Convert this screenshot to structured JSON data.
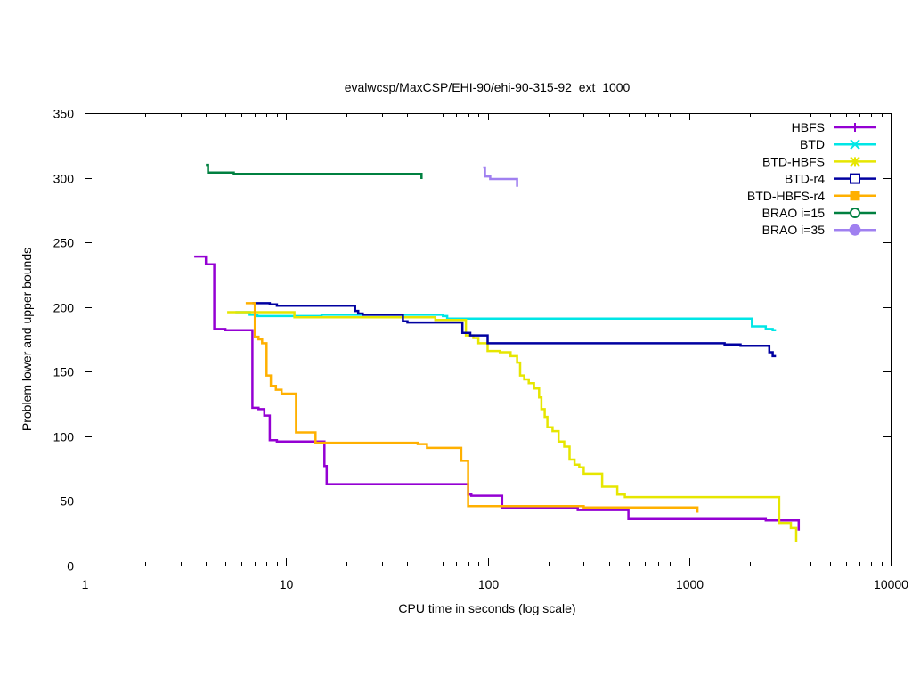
{
  "chart_data": {
    "type": "line",
    "title": "evalwcsp/MaxCSP/EHI-90/ehi-90-315-92_ext_1000",
    "xlabel": "CPU time in seconds (log scale)",
    "ylabel": "Problem lower and upper bounds",
    "xscale": "log",
    "xlim": [
      1,
      10000
    ],
    "ylim": [
      0,
      350
    ],
    "xticks": [
      1,
      10,
      100,
      1000,
      10000
    ],
    "xtick_labels": [
      "1",
      "10",
      "100",
      "1000",
      "10000"
    ],
    "yticks": [
      0,
      50,
      100,
      150,
      200,
      250,
      300,
      350
    ],
    "ytick_labels": [
      "0",
      "50",
      "100",
      "150",
      "200",
      "250",
      "300",
      "350"
    ],
    "grid": false,
    "legend_position": "top-right",
    "series": [
      {
        "name": "HBFS",
        "color": "#9400d3",
        "marker": "plus",
        "points": [
          [
            3.5,
            239
          ],
          [
            4.0,
            239
          ],
          [
            4.0,
            233
          ],
          [
            4.4,
            233
          ],
          [
            4.4,
            183
          ],
          [
            5.0,
            183
          ],
          [
            5.0,
            182
          ],
          [
            6.8,
            182
          ],
          [
            6.8,
            122
          ],
          [
            7.3,
            122
          ],
          [
            7.3,
            121
          ],
          [
            7.8,
            121
          ],
          [
            7.8,
            116
          ],
          [
            8.3,
            116
          ],
          [
            8.3,
            97
          ],
          [
            9.0,
            97
          ],
          [
            9.0,
            96
          ],
          [
            15.5,
            96
          ],
          [
            15.5,
            77
          ],
          [
            15.9,
            77
          ],
          [
            15.9,
            63
          ],
          [
            80,
            63
          ],
          [
            80,
            55
          ],
          [
            83,
            55
          ],
          [
            83,
            54
          ],
          [
            118,
            54
          ],
          [
            118,
            45
          ],
          [
            280,
            45
          ],
          [
            280,
            43
          ],
          [
            500,
            43
          ],
          [
            500,
            36
          ],
          [
            2400,
            36
          ],
          [
            2400,
            35
          ],
          [
            3500,
            35
          ],
          [
            3500,
            27
          ]
        ]
      },
      {
        "name": "BTD",
        "color": "#00e6e6",
        "marker": "x",
        "points": [
          [
            5.6,
            196
          ],
          [
            6.6,
            196
          ],
          [
            6.6,
            194
          ],
          [
            7.2,
            194
          ],
          [
            7.2,
            193
          ],
          [
            15.0,
            193
          ],
          [
            15.0,
            194
          ],
          [
            60,
            194
          ],
          [
            60,
            193
          ],
          [
            63,
            193
          ],
          [
            63,
            191
          ],
          [
            2050,
            191
          ],
          [
            2050,
            185
          ],
          [
            2400,
            185
          ],
          [
            2400,
            183
          ],
          [
            2600,
            183
          ],
          [
            2600,
            182
          ],
          [
            2700,
            182
          ]
        ]
      },
      {
        "name": "BTD-HBFS",
        "color": "#e6e600",
        "marker": "asterisk",
        "points": [
          [
            5.1,
            196
          ],
          [
            11.0,
            196
          ],
          [
            11.0,
            192
          ],
          [
            55,
            192
          ],
          [
            55,
            190
          ],
          [
            78,
            190
          ],
          [
            78,
            178
          ],
          [
            85,
            178
          ],
          [
            85,
            176
          ],
          [
            90,
            176
          ],
          [
            90,
            172
          ],
          [
            100,
            172
          ],
          [
            100,
            166
          ],
          [
            115,
            166
          ],
          [
            115,
            165
          ],
          [
            130,
            165
          ],
          [
            130,
            162
          ],
          [
            140,
            162
          ],
          [
            140,
            157
          ],
          [
            145,
            157
          ],
          [
            145,
            147
          ],
          [
            152,
            147
          ],
          [
            152,
            144
          ],
          [
            160,
            144
          ],
          [
            160,
            141
          ],
          [
            170,
            141
          ],
          [
            170,
            137
          ],
          [
            180,
            137
          ],
          [
            180,
            130
          ],
          [
            185,
            130
          ],
          [
            185,
            121
          ],
          [
            192,
            121
          ],
          [
            192,
            115
          ],
          [
            198,
            115
          ],
          [
            198,
            107
          ],
          [
            210,
            107
          ],
          [
            210,
            104
          ],
          [
            225,
            104
          ],
          [
            225,
            96
          ],
          [
            240,
            96
          ],
          [
            240,
            92
          ],
          [
            255,
            92
          ],
          [
            255,
            82
          ],
          [
            270,
            82
          ],
          [
            270,
            78
          ],
          [
            285,
            78
          ],
          [
            285,
            76
          ],
          [
            300,
            76
          ],
          [
            300,
            71
          ],
          [
            370,
            71
          ],
          [
            370,
            61
          ],
          [
            440,
            61
          ],
          [
            440,
            55
          ],
          [
            480,
            55
          ],
          [
            480,
            53
          ],
          [
            2800,
            53
          ],
          [
            2800,
            33
          ],
          [
            3200,
            33
          ],
          [
            3200,
            29
          ],
          [
            3400,
            29
          ],
          [
            3400,
            18
          ]
        ]
      },
      {
        "name": "BTD-r4",
        "color": "#0000a0",
        "marker": "square",
        "points": [
          [
            6.8,
            203
          ],
          [
            8.3,
            203
          ],
          [
            8.3,
            202
          ],
          [
            9.0,
            202
          ],
          [
            9.0,
            201
          ],
          [
            22.0,
            201
          ],
          [
            22.0,
            197
          ],
          [
            22.8,
            197
          ],
          [
            22.8,
            195
          ],
          [
            24.0,
            195
          ],
          [
            24.0,
            194
          ],
          [
            38,
            194
          ],
          [
            38,
            189
          ],
          [
            40,
            189
          ],
          [
            40,
            188
          ],
          [
            75,
            188
          ],
          [
            75,
            180
          ],
          [
            82,
            180
          ],
          [
            82,
            178
          ],
          [
            100,
            178
          ],
          [
            100,
            172
          ],
          [
            1500,
            172
          ],
          [
            1500,
            171
          ],
          [
            1800,
            171
          ],
          [
            1800,
            170
          ],
          [
            2500,
            170
          ],
          [
            2500,
            165
          ],
          [
            2600,
            165
          ],
          [
            2600,
            162
          ],
          [
            2700,
            162
          ]
        ]
      },
      {
        "name": "BTD-HBFS-r4",
        "color": "#ffb000",
        "marker": "filled-square",
        "points": [
          [
            6.3,
            203
          ],
          [
            7.0,
            203
          ],
          [
            7.0,
            177
          ],
          [
            7.3,
            177
          ],
          [
            7.3,
            175
          ],
          [
            7.6,
            175
          ],
          [
            7.6,
            172
          ],
          [
            8.0,
            172
          ],
          [
            8.0,
            147
          ],
          [
            8.4,
            147
          ],
          [
            8.4,
            139
          ],
          [
            8.9,
            139
          ],
          [
            8.9,
            136
          ],
          [
            9.5,
            136
          ],
          [
            9.5,
            133
          ],
          [
            11.2,
            133
          ],
          [
            11.2,
            103
          ],
          [
            14.0,
            103
          ],
          [
            14.0,
            95
          ],
          [
            45,
            95
          ],
          [
            45,
            94
          ],
          [
            50,
            94
          ],
          [
            50,
            91
          ],
          [
            74,
            91
          ],
          [
            74,
            81
          ],
          [
            80,
            81
          ],
          [
            80,
            46
          ],
          [
            300,
            46
          ],
          [
            300,
            45
          ],
          [
            1100,
            45
          ],
          [
            1100,
            41
          ]
        ]
      },
      {
        "name": "BRAO i=15",
        "color": "#008040",
        "marker": "circle",
        "points": [
          [
            4.0,
            310
          ],
          [
            4.1,
            310
          ],
          [
            4.1,
            304
          ],
          [
            5.5,
            304
          ],
          [
            5.5,
            303
          ],
          [
            47,
            303
          ],
          [
            47,
            299
          ]
        ]
      },
      {
        "name": "BRAO i=35",
        "color": "#a080f0",
        "marker": "filled-circle",
        "points": [
          [
            95,
            308
          ],
          [
            97,
            308
          ],
          [
            97,
            301
          ],
          [
            103,
            301
          ],
          [
            103,
            299
          ],
          [
            140,
            299
          ],
          [
            140,
            293
          ]
        ]
      }
    ]
  }
}
